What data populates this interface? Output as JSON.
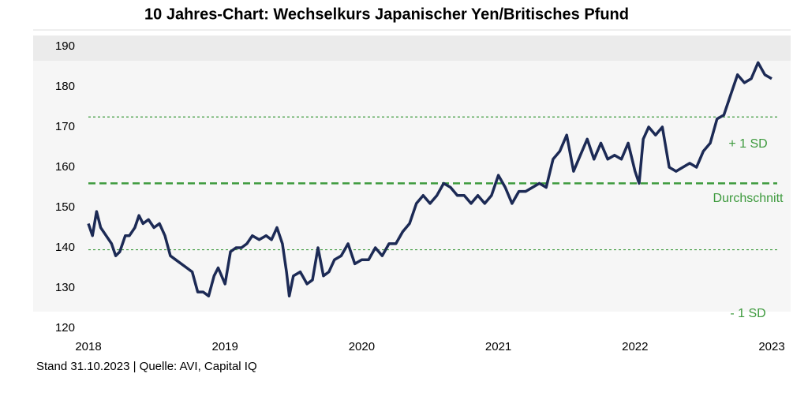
{
  "chart_data": {
    "type": "line",
    "title": "10 Jahres-Chart: Wechselkurs Japanischer Yen/Britisches Pfund",
    "source": "Stand 31.10.2023 | Quelle: AVI, Capital IQ",
    "xlim": [
      2018,
      2023
    ],
    "xticks": [
      2018,
      2019,
      2020,
      2021,
      2022,
      2023
    ],
    "ylim": [
      120,
      190
    ],
    "yticks": [
      120,
      130,
      140,
      150,
      160,
      170,
      180,
      190
    ],
    "reference_lines": [
      {
        "label": "+ 1 SD",
        "value": 172.5,
        "color": "#3d9a3d",
        "style": "dotted"
      },
      {
        "label": "Durchschnitt",
        "value": 156,
        "color": "#3d9a3d",
        "style": "dashed"
      },
      {
        "label": "- 1 SD",
        "value": 139.5,
        "color": "#3d9a3d",
        "style": "dotted"
      }
    ],
    "series": [
      {
        "color": "#1c2a55",
        "x": [
          2018.0,
          2018.03,
          2018.06,
          2018.09,
          2018.13,
          2018.17,
          2018.2,
          2018.23,
          2018.27,
          2018.3,
          2018.34,
          2018.37,
          2018.4,
          2018.44,
          2018.48,
          2018.52,
          2018.56,
          2018.6,
          2018.64,
          2018.68,
          2018.72,
          2018.76,
          2018.8,
          2018.84,
          2018.88,
          2018.92,
          2018.95,
          2019.0,
          2019.04,
          2019.08,
          2019.12,
          2019.16,
          2019.2,
          2019.25,
          2019.3,
          2019.34,
          2019.38,
          2019.42,
          2019.45,
          2019.47,
          2019.5,
          2019.55,
          2019.6,
          2019.64,
          2019.68,
          2019.72,
          2019.76,
          2019.8,
          2019.85,
          2019.9,
          2019.95,
          2020.0,
          2020.05,
          2020.1,
          2020.15,
          2020.2,
          2020.25,
          2020.3,
          2020.35,
          2020.4,
          2020.45,
          2020.5,
          2020.55,
          2020.6,
          2020.65,
          2020.7,
          2020.75,
          2020.8,
          2020.85,
          2020.9,
          2020.95,
          2021.0,
          2021.05,
          2021.1,
          2021.15,
          2021.2,
          2021.25,
          2021.3,
          2021.35,
          2021.4,
          2021.45,
          2021.5,
          2021.55,
          2021.6,
          2021.65,
          2021.7,
          2021.75,
          2021.8,
          2021.85,
          2021.9,
          2021.95,
          2022.0,
          2022.03,
          2022.06,
          2022.1,
          2022.15,
          2022.2,
          2022.25,
          2022.3,
          2022.35,
          2022.4,
          2022.45,
          2022.5,
          2022.55,
          2022.6,
          2022.65,
          2022.7,
          2022.75,
          2022.8,
          2022.85,
          2022.9,
          2022.95,
          2023.0
        ],
        "values": [
          146,
          143,
          149,
          145,
          143,
          141,
          138,
          139,
          143,
          143,
          145,
          148,
          146,
          147,
          145,
          146,
          143,
          138,
          137,
          136,
          135,
          134,
          129,
          129,
          128,
          133,
          135,
          131,
          139,
          140,
          140,
          141,
          143,
          142,
          143,
          142,
          145,
          141,
          134,
          128,
          133,
          134,
          131,
          132,
          140,
          133,
          134,
          137,
          138,
          141,
          136,
          137,
          137,
          140,
          138,
          141,
          141,
          144,
          146,
          151,
          153,
          151,
          153,
          156,
          155,
          153,
          153,
          151,
          153,
          151,
          153,
          158,
          155,
          151,
          154,
          154,
          155,
          156,
          155,
          162,
          164,
          168,
          159,
          163,
          167,
          162,
          166,
          162,
          163,
          162,
          166,
          159,
          156,
          167,
          170,
          168,
          170,
          160,
          159,
          160,
          161,
          160,
          164,
          166,
          172,
          173,
          178,
          183,
          181,
          182,
          186,
          183,
          182
        ]
      }
    ]
  }
}
